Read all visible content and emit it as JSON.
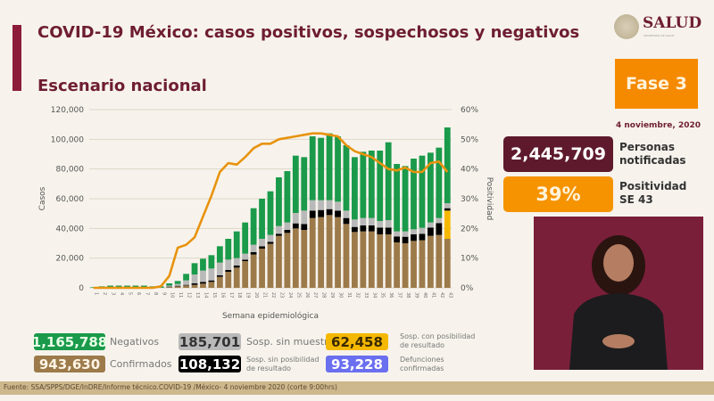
{
  "header": {
    "title": "COVID-19 México: casos positivos, sospechosos y negativos",
    "subtitle": "Escenario nacional",
    "logo_text": "SALUD",
    "logo_subtext": "SECRETARÍA DE SALUD"
  },
  "side": {
    "phase": "Fase 3",
    "date": "4 noviembre, 2020",
    "notified_value": "2,445,709",
    "notified_label": [
      "Personas",
      "notificadas"
    ],
    "positivity_value": "39%",
    "positivity_label": [
      "Positividad",
      "SE 43"
    ]
  },
  "legend": {
    "negativos": {
      "value": "1,165,788",
      "label": "Negativos",
      "color": "#1a9a4a"
    },
    "sin_muestra": {
      "value": "185,701",
      "label": "Sosp. sin muestra",
      "color": "#b9b9b9"
    },
    "con_posibilidad": {
      "value": "62,458",
      "label": [
        "Sosp. con posibilidad",
        "de resultado"
      ],
      "color": "#f5b800"
    },
    "confirmados": {
      "value": "943,630",
      "label": "Confirmados",
      "color": "#9c7a4a"
    },
    "sin_posibilidad": {
      "value": "108,132",
      "label": [
        "Sosp. sin posibilidad",
        "de resultado"
      ],
      "color": "#000000"
    },
    "defunciones": {
      "value": "93,228",
      "label": [
        "Defunciones",
        "confirmadas"
      ],
      "color": "#6a6ff0"
    }
  },
  "footer": "Fuente: SSA/SPPS/DGE/InDRE/Informe técnico.COVID-19 /México- 4 noviembre 2020 (corte 9:00hrs)",
  "chart_data": {
    "type": "bar",
    "stacked": true,
    "xlabel": "Semana epidemiológica",
    "ylabel": "Casos",
    "y2label": "Positividad",
    "ylim": [
      0,
      120000
    ],
    "y2lim": [
      0,
      60
    ],
    "yticks": [
      "0",
      "20,000",
      "40,000",
      "60,000",
      "80,000",
      "100,000",
      "120,000"
    ],
    "y2ticks": [
      "0%",
      "10%",
      "20%",
      "30%",
      "40%",
      "50%",
      "60%"
    ],
    "grid": true,
    "categories": [
      1,
      2,
      3,
      4,
      5,
      6,
      7,
      8,
      9,
      10,
      11,
      12,
      13,
      14,
      15,
      16,
      17,
      18,
      19,
      20,
      21,
      22,
      23,
      24,
      25,
      26,
      27,
      28,
      29,
      30,
      31,
      32,
      33,
      34,
      35,
      36,
      37,
      38,
      39,
      40,
      41,
      42,
      43
    ],
    "series": [
      {
        "name": "Confirmados",
        "color": "#9c7a4a",
        "values": [
          0,
          0,
          0,
          0,
          0,
          0,
          0,
          0,
          100,
          500,
          1000,
          1600,
          2000,
          2800,
          4000,
          7400,
          10800,
          13600,
          18000,
          22400,
          26400,
          29600,
          35000,
          37000,
          40000,
          39000,
          47000,
          47600,
          49000,
          47600,
          43000,
          37600,
          38000,
          38000,
          36000,
          36000,
          30600,
          30000,
          31600,
          32000,
          35000,
          35600,
          33000
        ]
      },
      {
        "name": "Sosp. con posibilidad de resultado",
        "color": "#f5b800",
        "values": [
          0,
          0,
          0,
          0,
          0,
          0,
          0,
          0,
          0,
          0,
          0,
          0,
          0,
          0,
          0,
          0,
          0,
          0,
          0,
          0,
          0,
          0,
          0,
          0,
          0,
          0,
          0,
          0,
          0,
          0,
          0,
          0,
          0,
          0,
          0,
          0,
          0,
          0,
          0,
          0,
          0,
          0,
          19000
        ]
      },
      {
        "name": "Sosp. sin posibilidad de resultado",
        "color": "#000000",
        "values": [
          0,
          0,
          0,
          0,
          0,
          0,
          0,
          0,
          0,
          300,
          400,
          400,
          1000,
          1200,
          1000,
          1000,
          1200,
          1400,
          1000,
          1600,
          1600,
          1400,
          1400,
          2000,
          3400,
          4000,
          5000,
          4800,
          4000,
          4400,
          4000,
          3400,
          4000,
          4000,
          4600,
          4600,
          4000,
          4400,
          4400,
          4400,
          5600,
          8000,
          1600
        ]
      },
      {
        "name": "Sosp. sin muestra",
        "color": "#b9b9b9",
        "values": [
          0,
          0,
          0,
          0,
          0,
          0,
          0,
          0,
          0,
          700,
          1200,
          3000,
          6000,
          7600,
          8000,
          8600,
          7000,
          5000,
          4000,
          5000,
          5000,
          4600,
          5200,
          5000,
          7000,
          9000,
          7000,
          6600,
          6000,
          6000,
          5000,
          5000,
          5000,
          5000,
          4400,
          5000,
          3400,
          3600,
          3400,
          4000,
          3400,
          3400,
          3400
        ]
      },
      {
        "name": "Negativos",
        "color": "#1a9a4a",
        "values": [
          400,
          1000,
          1500,
          1500,
          1500,
          1500,
          1500,
          1000,
          900,
          1500,
          2000,
          4400,
          7600,
          8000,
          9000,
          11000,
          14000,
          18000,
          21000,
          24600,
          27000,
          29400,
          32800,
          34600,
          38600,
          36000,
          43000,
          42000,
          45000,
          44000,
          44000,
          42000,
          44600,
          45400,
          47400,
          52400,
          45400,
          44000,
          47600,
          48600,
          47000,
          47400,
          51000
        ]
      }
    ],
    "line": {
      "name": "Positividad",
      "color": "#e8930e",
      "values": [
        0,
        0,
        0,
        0,
        0,
        0,
        0,
        0,
        0.5,
        4,
        13.5,
        14.5,
        17,
        24,
        31,
        39,
        42,
        41.5,
        44,
        47,
        48.5,
        48.5,
        50,
        50.5,
        51,
        51.5,
        52,
        52,
        51.5,
        51,
        48,
        46,
        45,
        44,
        42,
        40,
        39.5,
        40.5,
        39,
        39,
        42,
        42.5,
        39
      ]
    }
  }
}
